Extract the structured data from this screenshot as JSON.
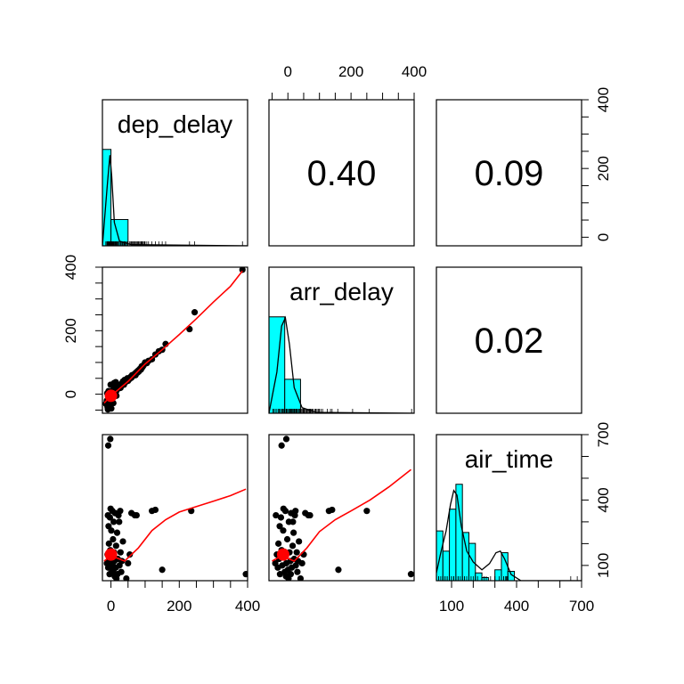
{
  "chart_data": {
    "type": "scatter",
    "subtype": "pairs-matrix",
    "variables": [
      "dep_delay",
      "arr_delay",
      "air_time"
    ],
    "ranges": {
      "dep_delay": [
        -25,
        400
      ],
      "arr_delay": [
        -60,
        400
      ],
      "air_time": [
        30,
        700
      ]
    },
    "ticks": {
      "dep_delay": [
        0,
        200,
        400
      ],
      "arr_delay": [
        0,
        200,
        400
      ],
      "air_time": [
        100,
        400,
        700
      ]
    },
    "correlations": [
      {
        "row": 0,
        "col": 1,
        "value": "0.40"
      },
      {
        "row": 0,
        "col": 2,
        "value": "0.09"
      },
      {
        "row": 1,
        "col": 2,
        "value": "0.02"
      }
    ],
    "histograms": {
      "dep_delay": {
        "breaks": [
          -25,
          0,
          50,
          100,
          150,
          200,
          250,
          300,
          350,
          400
        ],
        "density": [
          0.0165,
          0.0045,
          0.0,
          0.0,
          0.0,
          0.0,
          0.0,
          0.0,
          0.0
        ],
        "max_density": 0.0165
      },
      "arr_delay": {
        "breaks": [
          -60,
          -10,
          40,
          90,
          140,
          190,
          240,
          290,
          340,
          390
        ],
        "density": [
          0.0105,
          0.0037,
          0.0,
          0.0,
          0.0,
          0.0,
          0.0,
          0.0,
          0.0
        ],
        "max_density": 0.0105
      },
      "air_time": {
        "breaks": [
          30,
          60,
          90,
          120,
          150,
          180,
          210,
          240,
          270,
          300,
          330,
          360,
          390
        ],
        "density": [
          0.0032,
          0.0019,
          0.0046,
          0.0062,
          0.0031,
          0.0024,
          0.0005,
          0.0002,
          0.0,
          0.0007,
          0.0018,
          0.0006
        ],
        "max_density": 0.0062
      }
    },
    "density_curves": {
      "dep_delay": [
        [
          -25,
          0.0
        ],
        [
          -10,
          0.011
        ],
        [
          -3,
          0.0155
        ],
        [
          2,
          0.012
        ],
        [
          10,
          0.004
        ],
        [
          25,
          0.0008
        ],
        [
          60,
          0.0002
        ],
        [
          400,
          0.0
        ]
      ],
      "arr_delay": [
        [
          -60,
          0.0
        ],
        [
          -35,
          0.0045
        ],
        [
          -20,
          0.0095
        ],
        [
          -8,
          0.0104
        ],
        [
          5,
          0.0075
        ],
        [
          20,
          0.0028
        ],
        [
          45,
          0.0006
        ],
        [
          90,
          0.0001
        ],
        [
          400,
          0.0
        ]
      ],
      "air_time": [
        [
          30,
          0.0005
        ],
        [
          50,
          0.0018
        ],
        [
          75,
          0.0032
        ],
        [
          95,
          0.0049
        ],
        [
          110,
          0.0058
        ],
        [
          125,
          0.0055
        ],
        [
          145,
          0.0035
        ],
        [
          170,
          0.0019
        ],
        [
          200,
          0.0012
        ],
        [
          240,
          0.0007
        ],
        [
          275,
          0.0011
        ],
        [
          305,
          0.0018
        ],
        [
          325,
          0.0019
        ],
        [
          345,
          0.0014
        ],
        [
          375,
          0.0004
        ],
        [
          420,
          0.0
        ],
        [
          700,
          0.0
        ]
      ]
    },
    "scatter": {
      "dep_vs_arr": {
        "points": [
          [
            -15,
            -30
          ],
          [
            -12,
            -20
          ],
          [
            -10,
            -40
          ],
          [
            -8,
            -15
          ],
          [
            -6,
            -25
          ],
          [
            -5,
            -5
          ],
          [
            -4,
            -35
          ],
          [
            -3,
            -10
          ],
          [
            -2,
            -18
          ],
          [
            0,
            -2
          ],
          [
            2,
            -12
          ],
          [
            3,
            5
          ],
          [
            5,
            -6
          ],
          [
            6,
            12
          ],
          [
            8,
            2
          ],
          [
            10,
            15
          ],
          [
            12,
            20
          ],
          [
            15,
            8
          ],
          [
            18,
            22
          ],
          [
            20,
            25
          ],
          [
            22,
            18
          ],
          [
            25,
            30
          ],
          [
            28,
            20
          ],
          [
            30,
            28
          ],
          [
            33,
            35
          ],
          [
            35,
            40
          ],
          [
            38,
            30
          ],
          [
            40,
            45
          ],
          [
            42,
            38
          ],
          [
            45,
            40
          ],
          [
            48,
            50
          ],
          [
            50,
            42
          ],
          [
            55,
            48
          ],
          [
            58,
            55
          ],
          [
            60,
            52
          ],
          [
            62,
            60
          ],
          [
            65,
            58
          ],
          [
            68,
            62
          ],
          [
            70,
            65
          ],
          [
            72,
            60
          ],
          [
            75,
            70
          ],
          [
            78,
            68
          ],
          [
            80,
            75
          ],
          [
            82,
            72
          ],
          [
            85,
            80
          ],
          [
            88,
            78
          ],
          [
            90,
            88
          ],
          [
            92,
            85
          ],
          [
            95,
            90
          ],
          [
            98,
            95
          ],
          [
            100,
            100
          ],
          [
            105,
            98
          ],
          [
            110,
            105
          ],
          [
            120,
            110
          ],
          [
            130,
            125
          ],
          [
            140,
            135
          ],
          [
            150,
            140
          ],
          [
            160,
            158
          ],
          [
            230,
            205
          ],
          [
            245,
            258
          ],
          [
            -9,
            -48
          ],
          [
            -7,
            10
          ],
          [
            -1,
            30
          ],
          [
            1,
            -45
          ],
          [
            4,
            28
          ],
          [
            7,
            -28
          ],
          [
            9,
            35
          ],
          [
            -11,
            3
          ],
          [
            14,
            38
          ],
          [
            16,
            -5
          ],
          [
            385,
            392
          ]
        ],
        "centroid": [
          0,
          -5
        ],
        "smooth": [
          [
            -20,
            -28
          ],
          [
            0,
            -5
          ],
          [
            50,
            40
          ],
          [
            100,
            95
          ],
          [
            150,
            140
          ],
          [
            200,
            188
          ],
          [
            250,
            238
          ],
          [
            300,
            290
          ],
          [
            350,
            340
          ],
          [
            385,
            388
          ]
        ]
      },
      "dep_vs_air": {
        "points": [
          [
            -12,
            110
          ],
          [
            -10,
            150
          ],
          [
            -8,
            90
          ],
          [
            -6,
            200
          ],
          [
            -5,
            130
          ],
          [
            -4,
            60
          ],
          [
            -3,
            320
          ],
          [
            -2,
            170
          ],
          [
            0,
            100
          ],
          [
            1,
            260
          ],
          [
            2,
            140
          ],
          [
            3,
            70
          ],
          [
            4,
            350
          ],
          [
            5,
            110
          ],
          [
            6,
            220
          ],
          [
            7,
            80
          ],
          [
            8,
            300
          ],
          [
            9,
            160
          ],
          [
            10,
            120
          ],
          [
            12,
            340
          ],
          [
            14,
            90
          ],
          [
            15,
            190
          ],
          [
            18,
            250
          ],
          [
            20,
            130
          ],
          [
            22,
            330
          ],
          [
            25,
            100
          ],
          [
            28,
            160
          ],
          [
            30,
            70
          ],
          [
            32,
            120
          ],
          [
            35,
            210
          ],
          [
            -9,
            330
          ],
          [
            -7,
            280
          ],
          [
            -1,
            360
          ],
          [
            11,
            50
          ],
          [
            16,
            40
          ],
          [
            19,
            60
          ],
          [
            24,
            300
          ],
          [
            27,
            350
          ],
          [
            45,
            40
          ],
          [
            50,
            110
          ],
          [
            55,
            150
          ],
          [
            60,
            340
          ],
          [
            70,
            330
          ],
          [
            75,
            330
          ],
          [
            120,
            350
          ],
          [
            130,
            355
          ],
          [
            150,
            80
          ],
          [
            235,
            350
          ],
          [
            -8,
            650
          ],
          [
            -2,
            680
          ],
          [
            395,
            60
          ]
        ],
        "centroid": [
          0,
          150
        ],
        "smooth": [
          [
            -20,
            120
          ],
          [
            0,
            145
          ],
          [
            40,
            120
          ],
          [
            80,
            180
          ],
          [
            120,
            260
          ],
          [
            160,
            310
          ],
          [
            200,
            345
          ],
          [
            240,
            365
          ],
          [
            300,
            395
          ],
          [
            350,
            420
          ],
          [
            395,
            450
          ]
        ]
      },
      "arr_vs_air": {
        "points": [
          [
            -40,
            110
          ],
          [
            -35,
            150
          ],
          [
            -32,
            90
          ],
          [
            -30,
            200
          ],
          [
            -28,
            130
          ],
          [
            -25,
            60
          ],
          [
            -22,
            320
          ],
          [
            -20,
            170
          ],
          [
            -18,
            100
          ],
          [
            -15,
            260
          ],
          [
            -12,
            140
          ],
          [
            -10,
            70
          ],
          [
            -8,
            350
          ],
          [
            -5,
            110
          ],
          [
            -2,
            220
          ],
          [
            0,
            80
          ],
          [
            3,
            300
          ],
          [
            5,
            160
          ],
          [
            8,
            120
          ],
          [
            10,
            340
          ],
          [
            12,
            90
          ],
          [
            15,
            190
          ],
          [
            18,
            250
          ],
          [
            20,
            130
          ],
          [
            22,
            330
          ],
          [
            25,
            100
          ],
          [
            28,
            160
          ],
          [
            30,
            70
          ],
          [
            32,
            120
          ],
          [
            35,
            210
          ],
          [
            -38,
            330
          ],
          [
            -26,
            280
          ],
          [
            -14,
            360
          ],
          [
            -6,
            50
          ],
          [
            2,
            40
          ],
          [
            9,
            60
          ],
          [
            16,
            300
          ],
          [
            24,
            350
          ],
          [
            40,
            40
          ],
          [
            45,
            110
          ],
          [
            50,
            150
          ],
          [
            55,
            340
          ],
          [
            65,
            330
          ],
          [
            70,
            330
          ],
          [
            130,
            350
          ],
          [
            140,
            355
          ],
          [
            160,
            80
          ],
          [
            250,
            350
          ],
          [
            -20,
            650
          ],
          [
            -5,
            680
          ],
          [
            390,
            60
          ]
        ],
        "centroid": [
          -15,
          150
        ],
        "smooth": [
          [
            -50,
            120
          ],
          [
            -20,
            145
          ],
          [
            20,
            120
          ],
          [
            60,
            180
          ],
          [
            100,
            255
          ],
          [
            150,
            310
          ],
          [
            200,
            350
          ],
          [
            260,
            400
          ],
          [
            320,
            460
          ],
          [
            390,
            540
          ]
        ]
      }
    }
  }
}
